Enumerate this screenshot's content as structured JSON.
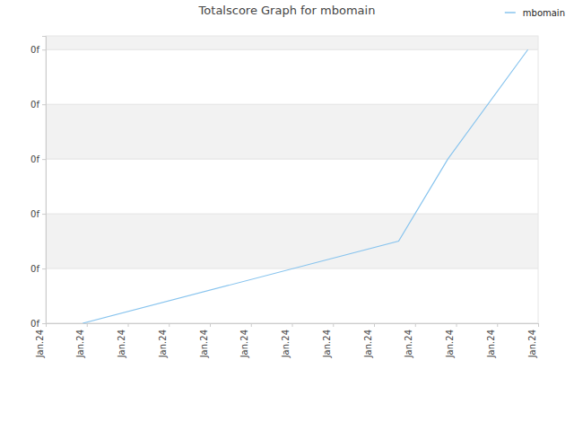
{
  "chart_data": {
    "type": "line",
    "title": "Totalscore Graph for mbomain",
    "x": [
      0.9,
      8.6,
      9.8,
      11.75
    ],
    "series": [
      {
        "name": "mbomain",
        "color": "#88c4ee",
        "values": [
          0,
          0.12,
          0.24,
          0.4
        ]
      }
    ],
    "xlim": [
      0,
      12
    ],
    "xticks": [
      {
        "value": 0,
        "label": "Jan.24"
      },
      {
        "value": 1,
        "label": "Jan.24"
      },
      {
        "value": 2,
        "label": "Jan.24"
      },
      {
        "value": 3,
        "label": "Jan.24"
      },
      {
        "value": 4,
        "label": "Jan.24"
      },
      {
        "value": 5,
        "label": "Jan.24"
      },
      {
        "value": 6,
        "label": "Jan.24"
      },
      {
        "value": 7,
        "label": "Jan.24"
      },
      {
        "value": 8,
        "label": "Jan.24"
      },
      {
        "value": 9,
        "label": "Jan.24"
      },
      {
        "value": 10,
        "label": "Jan.24"
      },
      {
        "value": 11,
        "label": "Jan.24"
      },
      {
        "value": 12,
        "label": "Jan.24"
      }
    ],
    "ylim": [
      0,
      0.42
    ],
    "yticks": [
      {
        "value": 0,
        "label": "0f"
      },
      {
        "value": 0.08,
        "label": "0f"
      },
      {
        "value": 0.16,
        "label": "0f"
      },
      {
        "value": 0.24,
        "label": "0f"
      },
      {
        "value": 0.32,
        "label": "0f"
      },
      {
        "value": 0.4,
        "label": "0f"
      }
    ],
    "grid": true,
    "legend": "upper right"
  }
}
